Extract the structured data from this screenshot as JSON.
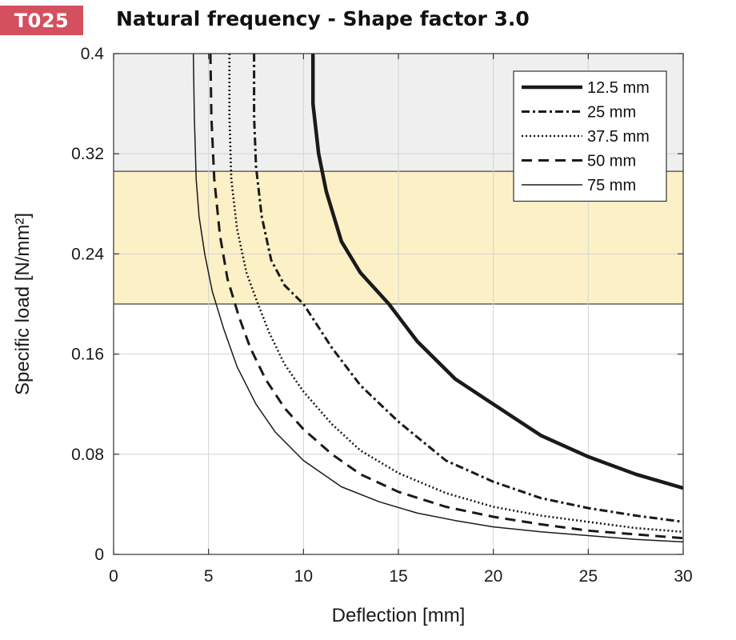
{
  "badge": "T025",
  "title": "Natural frequency - Shape factor 3.0",
  "chart_data": {
    "type": "line",
    "xlabel": "Deflection  [mm]",
    "ylabel": "Specific load [N/mm²]",
    "xlim": [
      0,
      30
    ],
    "ylim": [
      0,
      0.4
    ],
    "xticks": [
      "0",
      "5",
      "10",
      "15",
      "20",
      "25",
      "30"
    ],
    "yticks": [
      "0",
      "0.08",
      "0.16",
      "0.24",
      "0.32",
      "0.4"
    ],
    "grid": true,
    "legend_position": "top-right",
    "bands": [
      {
        "y": [
          0.2,
          0.306
        ],
        "color": "#fcf0c7"
      },
      {
        "y": [
          0.306,
          0.4
        ],
        "color": "#efefef"
      }
    ],
    "series": [
      {
        "name": "12.5 mm",
        "style": "solid-thick",
        "x": [
          10.5,
          10.5,
          10.8,
          11.2,
          12.0,
          13.0,
          14.5,
          16.0,
          18.0,
          20.0,
          22.5,
          25.0,
          27.5,
          30.0
        ],
        "y": [
          0.4,
          0.36,
          0.32,
          0.29,
          0.25,
          0.225,
          0.2,
          0.17,
          0.14,
          0.12,
          0.095,
          0.078,
          0.064,
          0.053
        ]
      },
      {
        "name": "25 mm",
        "style": "dashdot",
        "x": [
          7.4,
          7.4,
          7.5,
          7.8,
          8.3,
          9.0,
          10.0,
          11.5,
          13.0,
          15.0,
          17.5,
          20.0,
          22.5,
          25.0,
          27.5,
          30.0
        ],
        "y": [
          0.4,
          0.35,
          0.31,
          0.27,
          0.235,
          0.215,
          0.2,
          0.165,
          0.135,
          0.106,
          0.075,
          0.058,
          0.045,
          0.037,
          0.031,
          0.026
        ]
      },
      {
        "name": "37.5 mm",
        "style": "dotted",
        "x": [
          6.1,
          6.1,
          6.2,
          6.5,
          7.0,
          7.6,
          8.2,
          9.0,
          10.0,
          11.5,
          13.0,
          15.0,
          17.5,
          20.0,
          22.5,
          25.0,
          27.5,
          30.0
        ],
        "y": [
          0.4,
          0.35,
          0.3,
          0.26,
          0.225,
          0.2,
          0.177,
          0.152,
          0.13,
          0.104,
          0.083,
          0.065,
          0.049,
          0.038,
          0.031,
          0.026,
          0.021,
          0.018
        ]
      },
      {
        "name": "50 mm",
        "style": "dashed",
        "x": [
          5.1,
          5.15,
          5.3,
          5.6,
          6.0,
          6.6,
          7.2,
          8.0,
          9.0,
          10.0,
          11.5,
          13.0,
          15.0,
          17.5,
          20.0,
          22.5,
          25.0,
          27.5,
          30.0
        ],
        "y": [
          0.4,
          0.35,
          0.3,
          0.255,
          0.22,
          0.19,
          0.165,
          0.14,
          0.117,
          0.1,
          0.08,
          0.064,
          0.05,
          0.038,
          0.03,
          0.024,
          0.019,
          0.016,
          0.013
        ]
      },
      {
        "name": "75 mm",
        "style": "solid-thin",
        "x": [
          4.2,
          4.25,
          4.35,
          4.5,
          4.8,
          5.2,
          5.8,
          6.5,
          7.5,
          8.5,
          10.0,
          12.0,
          14.0,
          16.0,
          18.0,
          20.0,
          22.5,
          25.0,
          27.5,
          30.0
        ],
        "y": [
          0.4,
          0.35,
          0.3,
          0.27,
          0.24,
          0.21,
          0.18,
          0.15,
          0.12,
          0.098,
          0.075,
          0.054,
          0.042,
          0.033,
          0.027,
          0.022,
          0.018,
          0.015,
          0.012,
          0.01
        ]
      }
    ]
  }
}
